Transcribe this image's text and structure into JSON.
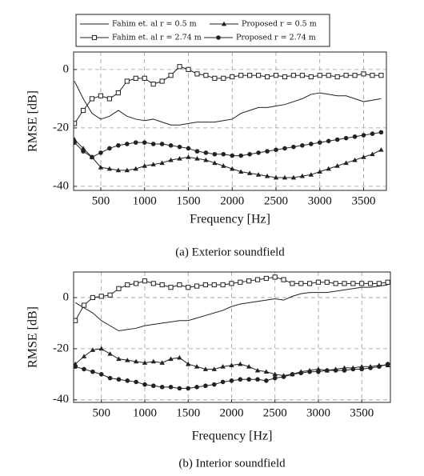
{
  "chart_data": [
    {
      "type": "line",
      "xlabel": "Frequency [Hz]",
      "ylabel": "RMSE [dB]",
      "caption": "(a) Exterior soundfield",
      "x": [
        200,
        300,
        400,
        500,
        600,
        700,
        800,
        900,
        1000,
        1100,
        1200,
        1300,
        1400,
        1500,
        1600,
        1700,
        1800,
        1900,
        2000,
        2100,
        2200,
        2300,
        2400,
        2500,
        2600,
        2700,
        2800,
        2900,
        3000,
        3100,
        3200,
        3300,
        3400,
        3500,
        3600,
        3700
      ],
      "series": [
        {
          "name": "Fahim et. al r = 0.5 m",
          "color": "#222222",
          "marker": "none",
          "values": [
            -4,
            -10,
            -15,
            -17,
            -16,
            -14,
            -16,
            -17,
            -17.5,
            -17,
            -18,
            -19,
            -19,
            -18.5,
            -18,
            -18,
            -18,
            -17.5,
            -17,
            -15,
            -14,
            -13,
            -13,
            -12.5,
            -12,
            -11,
            -10,
            -8.5,
            -8,
            -8.5,
            -9,
            -9,
            -10,
            -11,
            -10.5,
            -10
          ]
        },
        {
          "name": "Proposed r = 0.5 m",
          "color": "#222222",
          "marker": "triangle",
          "values": [
            -24,
            -27,
            -30,
            -33.5,
            -34,
            -34.5,
            -34.5,
            -34,
            -33,
            -32.5,
            -32,
            -31,
            -30.5,
            -30,
            -30.5,
            -31,
            -32,
            -33,
            -34,
            -35,
            -35.5,
            -36,
            -36.5,
            -37,
            -37,
            -37,
            -36.5,
            -36,
            -35,
            -34,
            -33,
            -32,
            -31,
            -30,
            -29,
            -27.5
          ]
        },
        {
          "name": "Fahim et. al r = 2.74 m",
          "color": "#222222",
          "marker": "square",
          "values": [
            -18.5,
            -14,
            -10,
            -9,
            -10,
            -8,
            -4,
            -3,
            -3,
            -5,
            -4,
            -2,
            1,
            0,
            -1.5,
            -2,
            -3,
            -3,
            -2.5,
            -2,
            -2,
            -2,
            -2.5,
            -2,
            -2.5,
            -2,
            -2,
            -2.5,
            -2,
            -2,
            -2.5,
            -2,
            -2,
            -1.5,
            -2,
            -2
          ]
        },
        {
          "name": "Proposed r = 2.74 m",
          "color": "#222222",
          "marker": "circle",
          "values": [
            -25,
            -28,
            -30,
            -28.5,
            -27,
            -26,
            -25.5,
            -25,
            -25,
            -25.5,
            -25.5,
            -26,
            -26.5,
            -27,
            -28,
            -28.5,
            -29,
            -29,
            -29.5,
            -29.5,
            -29,
            -28.5,
            -28,
            -27.5,
            -27,
            -26.5,
            -26,
            -25.5,
            -25,
            -24.5,
            -24,
            -23.5,
            -23,
            -22.5,
            -22,
            -21.5
          ]
        }
      ],
      "xlim": [
        190,
        3760
      ],
      "ylim": [
        -41.4,
        6
      ],
      "xticks": [
        500,
        1000,
        1500,
        2000,
        2500,
        3000,
        3500
      ],
      "yticks": [
        -40,
        -20,
        0
      ],
      "grid": true
    },
    {
      "type": "line",
      "xlabel": "Frequency [Hz]",
      "ylabel": "RMSE [dB]",
      "caption": "(b) Interior soundfield",
      "x": [
        200,
        300,
        400,
        500,
        600,
        700,
        800,
        900,
        1000,
        1100,
        1200,
        1300,
        1400,
        1500,
        1600,
        1700,
        1800,
        1900,
        2000,
        2100,
        2200,
        2300,
        2400,
        2500,
        2600,
        2700,
        2800,
        2900,
        3000,
        3100,
        3200,
        3300,
        3400,
        3500,
        3600,
        3700,
        3800
      ],
      "series": [
        {
          "color": "#222222",
          "marker": "none",
          "values": [
            -2,
            -4,
            -6,
            -9,
            -11,
            -13,
            -12.5,
            -12,
            -11,
            -10.5,
            -10,
            -9.5,
            -9,
            -9,
            -8,
            -7,
            -6,
            -5,
            -3.5,
            -2.5,
            -2,
            -1.5,
            -1,
            -0.5,
            -1,
            0.5,
            1.5,
            2,
            2,
            2,
            2.5,
            3,
            3.5,
            4,
            4,
            4.5,
            5
          ]
        },
        {
          "color": "#222222",
          "marker": "triangle",
          "values": [
            -26,
            -23,
            -20.5,
            -20,
            -22,
            -24,
            -24.5,
            -25,
            -25.5,
            -25,
            -25.5,
            -24,
            -23.5,
            -26,
            -27,
            -28,
            -28,
            -27,
            -26.5,
            -26,
            -27,
            -28.5,
            -29,
            -30,
            -30.5,
            -30,
            -29,
            -28.5,
            -28,
            -28.5,
            -28,
            -27.5,
            -27.5,
            -27,
            -27,
            -26.5,
            -26.5
          ]
        },
        {
          "color": "#222222",
          "marker": "square",
          "values": [
            -9,
            -3,
            0,
            0.5,
            1,
            3.5,
            5,
            5.5,
            6.5,
            5.5,
            5,
            4,
            5,
            4,
            4.5,
            5,
            5,
            5,
            5.5,
            6,
            6.5,
            7,
            7.5,
            8,
            7,
            5.5,
            5.5,
            5.5,
            6,
            6,
            5.5,
            5.5,
            5.5,
            5.5,
            5.5,
            5.5,
            6
          ]
        },
        {
          "color": "#222222",
          "marker": "circle",
          "values": [
            -27,
            -28,
            -29,
            -30,
            -31.5,
            -32,
            -32.5,
            -33,
            -34,
            -34.5,
            -35,
            -35,
            -35.5,
            -35.5,
            -35,
            -34.5,
            -34,
            -33,
            -32.5,
            -32,
            -32,
            -32,
            -32.5,
            -31.5,
            -31,
            -30,
            -29.5,
            -29,
            -29,
            -28.5,
            -28.5,
            -28.5,
            -28,
            -28,
            -27.5,
            -27,
            -26
          ]
        }
      ],
      "xlim": [
        180,
        3830
      ],
      "ylim": [
        -41,
        10
      ],
      "xticks": [
        500,
        1000,
        1500,
        2000,
        2500,
        3000,
        3500
      ],
      "yticks": [
        -40,
        -20,
        0
      ],
      "grid": true
    }
  ]
}
